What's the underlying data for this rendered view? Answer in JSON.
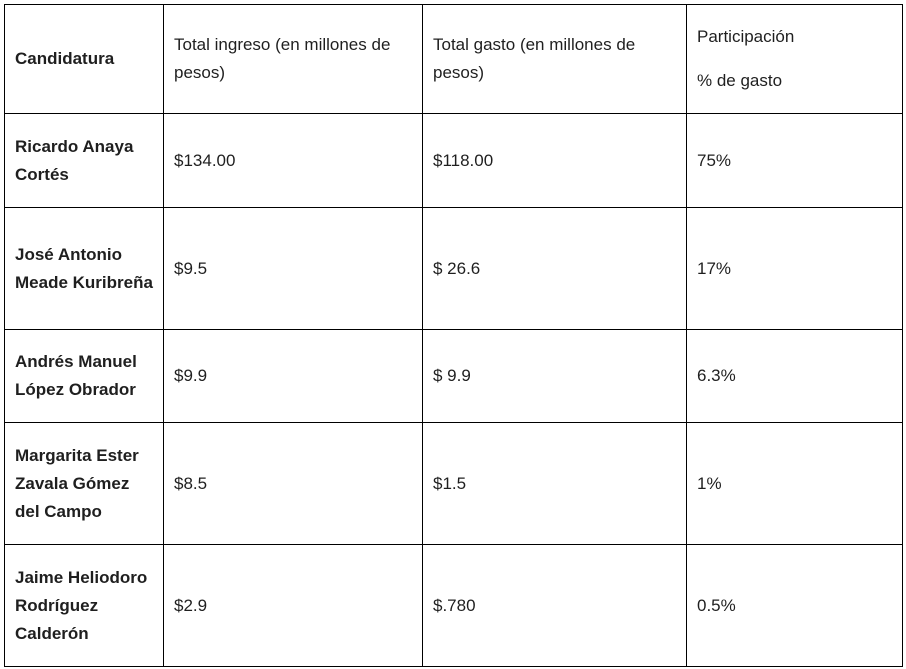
{
  "header": {
    "candidatura": "Candidatura",
    "total_ingreso": "Total ingreso (en millones de pesos)",
    "total_gasto": "Total gasto (en millones de pesos)",
    "participacion_line1": "Participación",
    "participacion_line2": "% de gasto"
  },
  "rows": [
    {
      "candidatura": "Ricardo Anaya Cortés",
      "ingreso": "$134.00",
      "gasto": "$118.00",
      "participacion": "75%"
    },
    {
      "candidatura": "José Antonio Meade Kuribreña",
      "ingreso": "$9.5",
      "gasto": "$ 26.6",
      "participacion": "17%"
    },
    {
      "candidatura": "Andrés Manuel López Obrador",
      "ingreso": "$9.9",
      "gasto": "$ 9.9",
      "participacion": "6.3%"
    },
    {
      "candidatura": "Margarita Ester Zavala Gómez del Campo",
      "ingreso": "$8.5",
      "gasto": "$1.5",
      "participacion": "1%"
    },
    {
      "candidatura": "Jaime Heliodoro Rodríguez Calderón",
      "ingreso": "$2.9",
      "gasto": "$.780",
      "participacion": "0.5%"
    }
  ]
}
